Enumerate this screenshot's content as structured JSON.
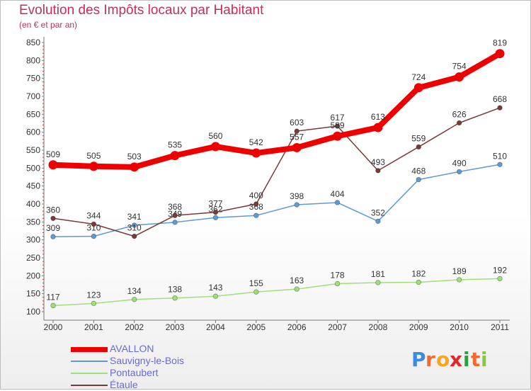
{
  "chart_data": {
    "type": "line",
    "title": "Evolution des Impôts locaux par Habitant",
    "subtitle": "(en € et par an)",
    "xlabel": "",
    "ylabel": "",
    "categories": [
      "2000",
      "2001",
      "2002",
      "2003",
      "2004",
      "2005",
      "2006",
      "2007",
      "2008",
      "2009",
      "2010",
      "2011"
    ],
    "ylim": [
      100,
      850
    ],
    "yticks": [
      100,
      150,
      200,
      250,
      300,
      350,
      400,
      450,
      500,
      550,
      600,
      650,
      700,
      750,
      800,
      850
    ],
    "grid": false,
    "legend_position": "bottom-left",
    "series": [
      {
        "name": "AVALLON",
        "color": "#ee0000",
        "values": [
          509,
          505,
          503,
          535,
          560,
          542,
          557,
          589,
          613,
          724,
          754,
          819
        ]
      },
      {
        "name": "Sauvigny-le-Bois",
        "color": "#5f9bd0",
        "values": [
          309,
          310,
          341,
          349,
          362,
          368,
          398,
          404,
          352,
          468,
          490,
          510
        ]
      },
      {
        "name": "Pontaubert",
        "color": "#9fe07a",
        "values": [
          117,
          123,
          134,
          138,
          143,
          155,
          163,
          178,
          181,
          182,
          189,
          192
        ]
      },
      {
        "name": "Étaule",
        "color": "#7a3a3a",
        "values": [
          360,
          344,
          310,
          368,
          377,
          400,
          603,
          617,
          493,
          559,
          626,
          668
        ]
      }
    ]
  },
  "brand": {
    "letters": [
      "P",
      "r",
      "o",
      "x",
      "i",
      "t",
      "i"
    ],
    "colors": [
      "#3a8ed8",
      "#ef6b2f",
      "#f5a623",
      "#e2252b",
      "#2e9e44",
      "#ef6b2f",
      "#8cc63f"
    ]
  }
}
